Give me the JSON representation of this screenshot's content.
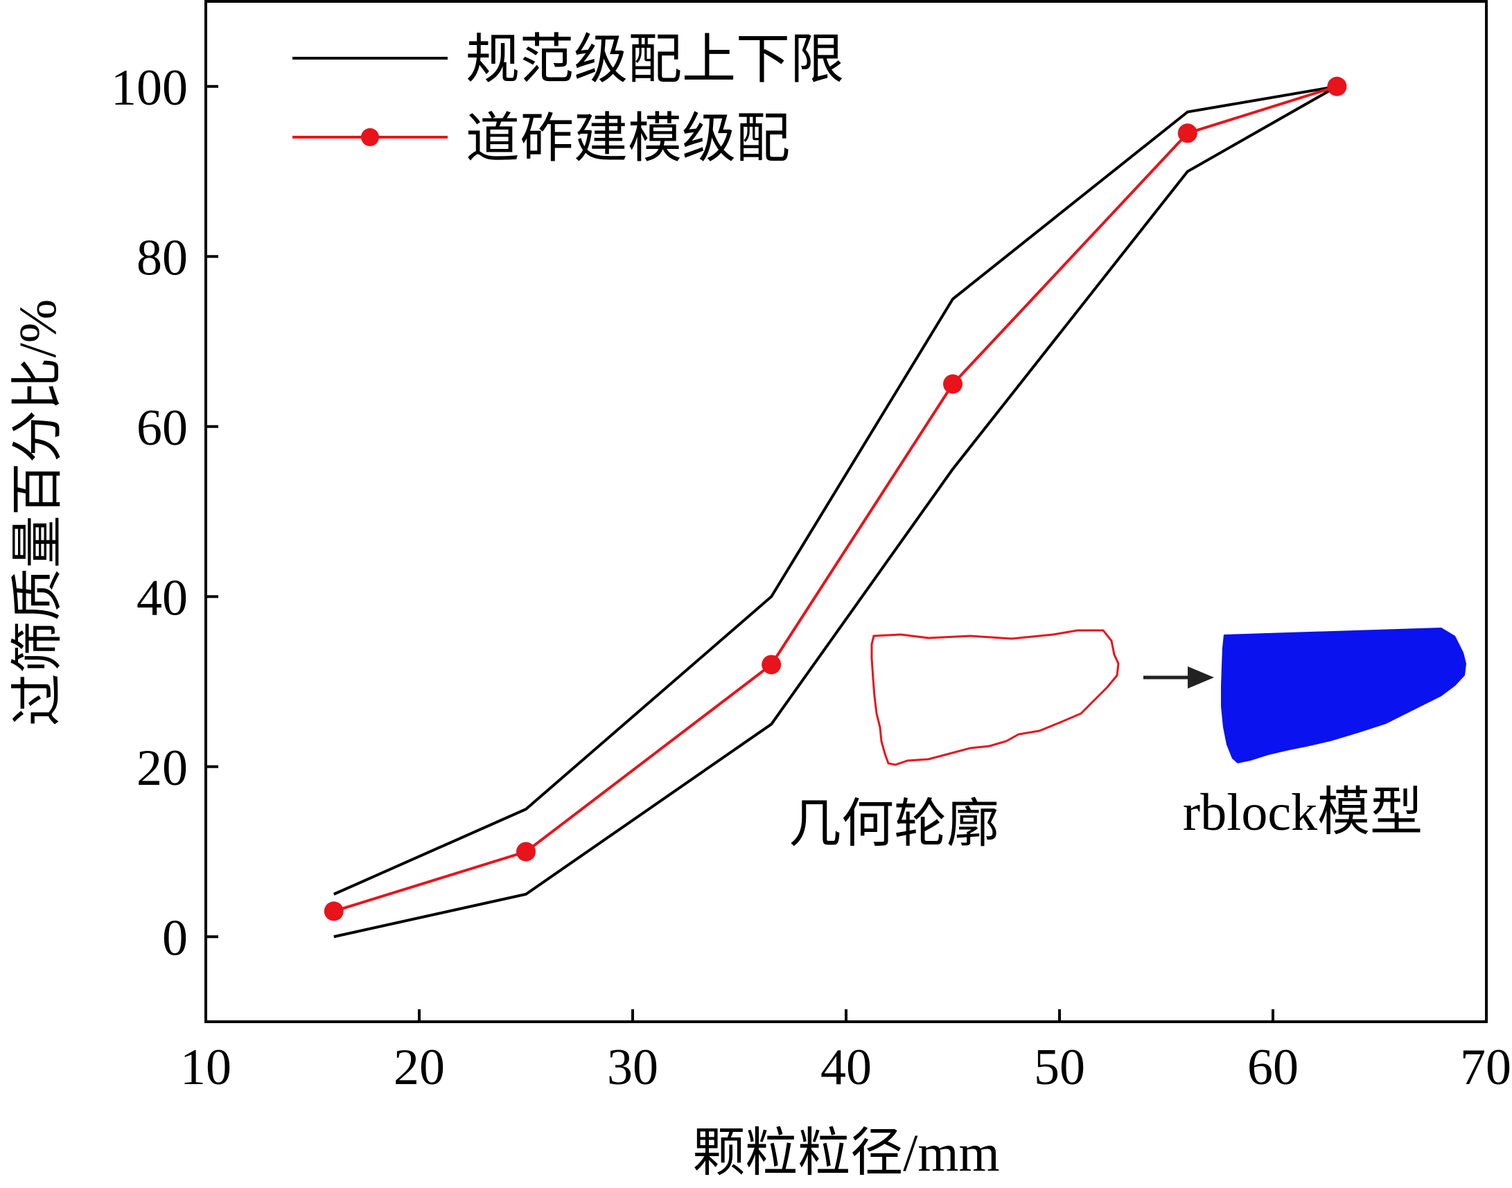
{
  "chart_data": {
    "type": "line",
    "title": "",
    "xlabel": "颗粒粒径/mm",
    "ylabel": "过筛质量百分比/%",
    "xlim": [
      10,
      70
    ],
    "ylim": [
      -10,
      110
    ],
    "x_ticks": [
      10,
      20,
      30,
      40,
      50,
      60,
      70
    ],
    "y_ticks": [
      0,
      20,
      40,
      60,
      80,
      100
    ],
    "legend_position": "top-left",
    "grid": false,
    "series": [
      {
        "name": "规范级配上下限",
        "role": "upper",
        "color": "#000000",
        "marker": false,
        "x": [
          16,
          25,
          36.5,
          45,
          56,
          63
        ],
        "y": [
          5,
          15,
          40,
          75,
          97,
          100
        ]
      },
      {
        "name": "规范级配上下限",
        "role": "lower",
        "color": "#000000",
        "marker": false,
        "x": [
          16,
          25,
          36.5,
          45,
          56,
          63
        ],
        "y": [
          0,
          5,
          25,
          55,
          90,
          100
        ]
      },
      {
        "name": "道砟建模级配",
        "role": "model",
        "color": "#e8131b",
        "marker": true,
        "x": [
          16,
          25,
          36.5,
          45,
          56,
          63
        ],
        "y": [
          3,
          10,
          32,
          65,
          94.5,
          100
        ]
      }
    ],
    "legend": [
      {
        "label": "规范级配上下限",
        "color": "#000000",
        "marker": false
      },
      {
        "label": "道砟建模级配",
        "color": "#e8131b",
        "marker": true
      }
    ],
    "annotations": {
      "contour_label": "几何轮廓",
      "model_label": "rblock模型",
      "contour_color": "#e8131b",
      "model_color": "#0a12f0",
      "arrow_color": "#222222"
    }
  }
}
